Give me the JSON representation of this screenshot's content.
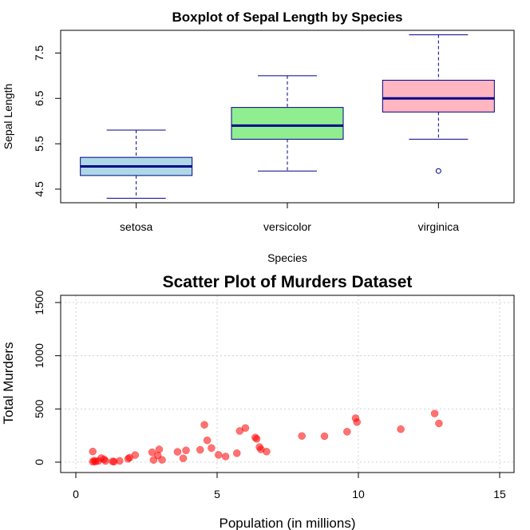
{
  "chart_data": [
    {
      "type": "box",
      "title": "Boxplot of Sepal Length by Species",
      "xlabel": "Species",
      "ylabel": "Sepal Length",
      "ylim": [
        4.2,
        8.0
      ],
      "yticks": [
        "4.5",
        "5.5",
        "6.5",
        "7.5"
      ],
      "categories": [
        "setosa",
        "versicolor",
        "virginica"
      ],
      "boxes": [
        {
          "min": 4.3,
          "q1": 4.8,
          "median": 5.0,
          "q3": 5.2,
          "max": 5.8,
          "outliers": [],
          "fill": "#add8e6"
        },
        {
          "min": 4.9,
          "q1": 5.6,
          "median": 5.9,
          "q3": 6.3,
          "max": 7.0,
          "outliers": [],
          "fill": "#90ee90"
        },
        {
          "min": 5.6,
          "q1": 6.2,
          "median": 6.5,
          "q3": 6.9,
          "max": 7.9,
          "outliers": [
            4.9
          ],
          "fill": "#ffb6c1"
        }
      ],
      "border_color": "#00008b",
      "grid": false
    },
    {
      "type": "scatter",
      "title": "Scatter Plot of Murders Dataset",
      "xlabel": "Population (in millions)",
      "ylabel": "Total Murders",
      "xlim": [
        0,
        15
      ],
      "ylim": [
        0,
        1500
      ],
      "xticks": [
        "0",
        "5",
        "10",
        "15"
      ],
      "yticks": [
        "0",
        "500",
        "1000",
        "1500"
      ],
      "point_color": "#ff0000",
      "grid": true,
      "points": [
        {
          "x": 0.6,
          "y": 4
        },
        {
          "x": 0.6,
          "y": 100
        },
        {
          "x": 0.65,
          "y": 14
        },
        {
          "x": 0.7,
          "y": 5
        },
        {
          "x": 0.8,
          "y": 12
        },
        {
          "x": 0.9,
          "y": 38
        },
        {
          "x": 1.0,
          "y": 27
        },
        {
          "x": 1.05,
          "y": 11
        },
        {
          "x": 1.3,
          "y": 7
        },
        {
          "x": 1.35,
          "y": 5
        },
        {
          "x": 1.55,
          "y": 12
        },
        {
          "x": 1.85,
          "y": 31
        },
        {
          "x": 1.9,
          "y": 42
        },
        {
          "x": 2.1,
          "y": 67
        },
        {
          "x": 2.7,
          "y": 93
        },
        {
          "x": 2.75,
          "y": 21
        },
        {
          "x": 2.9,
          "y": 63
        },
        {
          "x": 2.95,
          "y": 120
        },
        {
          "x": 3.05,
          "y": 22
        },
        {
          "x": 3.6,
          "y": 97
        },
        {
          "x": 3.8,
          "y": 36
        },
        {
          "x": 3.9,
          "y": 111
        },
        {
          "x": 4.4,
          "y": 116
        },
        {
          "x": 4.55,
          "y": 351
        },
        {
          "x": 4.65,
          "y": 205
        },
        {
          "x": 4.8,
          "y": 133
        },
        {
          "x": 5.05,
          "y": 68
        },
        {
          "x": 5.3,
          "y": 53
        },
        {
          "x": 5.7,
          "y": 84
        },
        {
          "x": 5.8,
          "y": 293
        },
        {
          "x": 6.0,
          "y": 321
        },
        {
          "x": 6.35,
          "y": 232
        },
        {
          "x": 6.4,
          "y": 219
        },
        {
          "x": 6.5,
          "y": 142
        },
        {
          "x": 6.55,
          "y": 120
        },
        {
          "x": 6.75,
          "y": 99
        },
        {
          "x": 8.0,
          "y": 246
        },
        {
          "x": 8.8,
          "y": 244
        },
        {
          "x": 9.6,
          "y": 286
        },
        {
          "x": 9.9,
          "y": 413
        },
        {
          "x": 9.95,
          "y": 376
        },
        {
          "x": 11.5,
          "y": 310
        },
        {
          "x": 12.7,
          "y": 457
        },
        {
          "x": 12.85,
          "y": 364
        }
      ]
    }
  ]
}
